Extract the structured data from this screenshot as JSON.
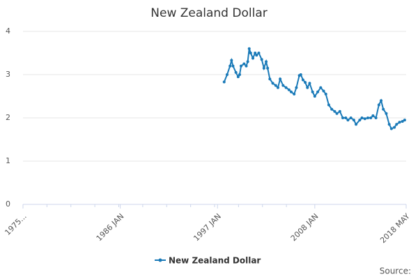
{
  "chart_data": {
    "type": "line",
    "title": "New Zealand Dollar",
    "source": "Source:",
    "x": [
      "1997-10",
      "1998-02",
      "1998-06",
      "1998-08",
      "1998-10",
      "1999-02",
      "1999-05",
      "1999-07",
      "1999-09",
      "2000-01",
      "2000-04",
      "2000-06",
      "2000-08",
      "2000-10",
      "2001-01",
      "2001-04",
      "2001-06",
      "2001-09",
      "2002-01",
      "2002-04",
      "2002-07",
      "2002-09",
      "2002-12",
      "2003-04",
      "2003-08",
      "2003-11",
      "2004-02",
      "2004-06",
      "2004-10",
      "2005-02",
      "2005-05",
      "2005-09",
      "2005-12",
      "2006-04",
      "2006-06",
      "2006-09",
      "2006-12",
      "2007-03",
      "2007-06",
      "2007-10",
      "2008-01",
      "2008-05",
      "2008-09",
      "2009-01",
      "2009-04",
      "2009-08",
      "2009-12",
      "2010-04",
      "2010-07",
      "2010-11",
      "2011-03",
      "2011-07",
      "2011-10",
      "2012-02",
      "2012-06",
      "2012-09",
      "2013-02",
      "2013-05",
      "2013-09",
      "2014-01",
      "2014-05",
      "2014-08",
      "2014-12",
      "2015-04",
      "2015-07",
      "2015-10",
      "2016-02",
      "2016-06",
      "2016-09",
      "2017-01",
      "2017-04",
      "2017-08",
      "2017-12",
      "2018-03"
    ],
    "series": [
      {
        "name": "New Zealand Dollar",
        "color": "#1a7ab8",
        "values": [
          2.83,
          3.0,
          3.2,
          3.33,
          3.2,
          3.05,
          2.95,
          3.0,
          3.2,
          3.25,
          3.2,
          3.3,
          3.6,
          3.5,
          3.38,
          3.5,
          3.45,
          3.5,
          3.35,
          3.15,
          3.3,
          3.15,
          2.9,
          2.8,
          2.75,
          2.7,
          2.9,
          2.75,
          2.7,
          2.65,
          2.6,
          2.55,
          2.7,
          2.98,
          3.0,
          2.88,
          2.82,
          2.7,
          2.8,
          2.6,
          2.5,
          2.6,
          2.7,
          2.62,
          2.55,
          2.3,
          2.2,
          2.15,
          2.1,
          2.15,
          2.0,
          2.0,
          1.95,
          2.0,
          1.95,
          1.85,
          1.95,
          2.0,
          1.98,
          2.0,
          2.0,
          2.05,
          2.0,
          2.3,
          2.4,
          2.2,
          2.1,
          1.85,
          1.75,
          1.78,
          1.85,
          1.9,
          1.92,
          1.95
        ]
      }
    ],
    "xlim": [
      "1975-01",
      "2018-05"
    ],
    "xticks": [
      {
        "value": "1975-01",
        "label": "1975..."
      },
      {
        "value": "1986-01",
        "label": "1986 JAN"
      },
      {
        "value": "1997-01",
        "label": "1997 JAN"
      },
      {
        "value": "2008-01",
        "label": "2008 JAN"
      },
      {
        "value": "2018-05",
        "label": "2018 MAY"
      }
    ],
    "ylim": [
      0,
      4
    ],
    "yticks": [
      0,
      1,
      2,
      3,
      4
    ],
    "grid": true,
    "legend": "bottom"
  }
}
